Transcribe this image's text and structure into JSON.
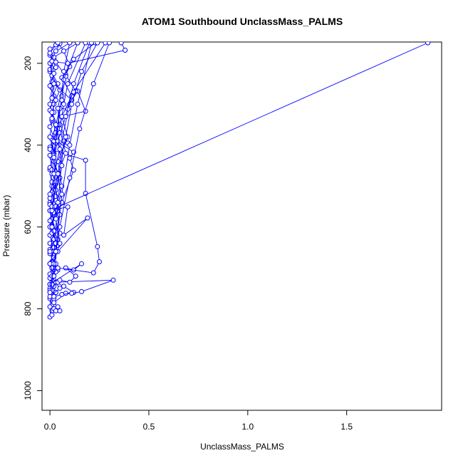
{
  "chart_data": {
    "type": "line",
    "title": "ATOM1 Southbound UnclassMass_PALMS",
    "xlabel": "UnclassMass_PALMS",
    "ylabel": "Pressure (mbar)",
    "xlim": [
      -0.04,
      1.98
    ],
    "ylim": [
      1048,
      148
    ],
    "y_reversed": true,
    "x_ticks": [
      0.0,
      0.5,
      1.0,
      1.5
    ],
    "x_tick_labels": [
      "0.0",
      "0.5",
      "1.0",
      "1.5"
    ],
    "y_ticks": [
      200,
      400,
      600,
      800,
      1000
    ],
    "y_tick_labels": [
      "200",
      "400",
      "600",
      "800",
      "1000"
    ],
    "marker": "open-circle",
    "grid": false,
    "series_color": "#0000ff",
    "series": [
      {
        "values": [
          [
            0.0,
            820
          ],
          [
            0.01,
            780
          ],
          [
            0.0,
            740
          ],
          [
            0.01,
            700
          ],
          [
            0.02,
            660
          ],
          [
            0.0,
            620
          ],
          [
            0.01,
            580
          ],
          [
            0.0,
            540
          ],
          [
            0.01,
            500
          ],
          [
            0.0,
            460
          ],
          [
            0.02,
            420
          ],
          [
            0.0,
            380
          ],
          [
            0.01,
            340
          ],
          [
            0.0,
            300
          ],
          [
            0.01,
            260
          ],
          [
            0.0,
            220
          ],
          [
            0.02,
            190
          ],
          [
            0.0,
            165
          ],
          [
            0.05,
            150
          ]
        ]
      },
      {
        "values": [
          [
            0.01,
            805
          ],
          [
            0.02,
            770
          ],
          [
            0.01,
            735
          ],
          [
            0.03,
            700
          ],
          [
            0.0,
            665
          ],
          [
            0.02,
            630
          ],
          [
            0.01,
            595
          ],
          [
            0.0,
            560
          ],
          [
            0.03,
            525
          ],
          [
            0.01,
            490
          ],
          [
            0.0,
            455
          ],
          [
            0.02,
            420
          ],
          [
            0.01,
            385
          ],
          [
            0.03,
            350
          ],
          [
            0.0,
            315
          ],
          [
            0.02,
            280
          ],
          [
            0.01,
            245
          ],
          [
            0.03,
            210
          ],
          [
            0.0,
            180
          ],
          [
            0.1,
            150
          ]
        ]
      },
      {
        "values": [
          [
            0.0,
            775
          ],
          [
            0.03,
            760
          ],
          [
            0.02,
            745
          ],
          [
            0.0,
            725
          ],
          [
            0.04,
            705
          ],
          [
            0.01,
            685
          ],
          [
            0.02,
            660
          ],
          [
            0.0,
            640
          ],
          [
            0.03,
            610
          ],
          [
            0.01,
            580
          ],
          [
            0.0,
            545
          ],
          [
            0.02,
            510
          ],
          [
            0.04,
            470
          ],
          [
            0.01,
            430
          ],
          [
            0.03,
            395
          ],
          [
            0.0,
            355
          ],
          [
            0.02,
            320
          ],
          [
            0.01,
            285
          ],
          [
            0.04,
            250
          ],
          [
            0.0,
            215
          ],
          [
            0.02,
            185
          ],
          [
            0.14,
            150
          ]
        ]
      },
      {
        "values": [
          [
            0.02,
            800
          ],
          [
            0.01,
            790
          ],
          [
            0.0,
            770
          ],
          [
            0.05,
            750
          ],
          [
            0.02,
            730
          ],
          [
            0.03,
            710
          ],
          [
            0.0,
            690
          ],
          [
            0.02,
            670
          ],
          [
            0.04,
            645
          ],
          [
            0.01,
            615
          ],
          [
            0.0,
            585
          ],
          [
            0.03,
            550
          ],
          [
            0.01,
            515
          ],
          [
            0.05,
            480
          ],
          [
            0.02,
            440
          ],
          [
            0.0,
            405
          ],
          [
            0.03,
            370
          ],
          [
            0.01,
            335
          ],
          [
            0.02,
            300
          ],
          [
            0.05,
            265
          ],
          [
            0.01,
            230
          ],
          [
            0.0,
            200
          ],
          [
            0.03,
            170
          ],
          [
            0.05,
            152
          ]
        ]
      },
      {
        "values": [
          [
            0.01,
            815
          ],
          [
            0.0,
            795
          ],
          [
            0.02,
            775
          ],
          [
            0.01,
            755
          ],
          [
            0.03,
            735
          ],
          [
            0.0,
            715
          ],
          [
            0.01,
            695
          ],
          [
            0.02,
            675
          ],
          [
            0.0,
            655
          ],
          [
            0.04,
            630
          ],
          [
            0.01,
            600
          ],
          [
            0.02,
            565
          ],
          [
            0.0,
            530
          ],
          [
            0.03,
            495
          ],
          [
            0.01,
            460
          ],
          [
            0.0,
            425
          ],
          [
            0.02,
            390
          ],
          [
            0.04,
            355
          ],
          [
            0.01,
            320
          ],
          [
            0.03,
            290
          ],
          [
            0.0,
            255
          ],
          [
            0.02,
            225
          ],
          [
            0.01,
            195
          ],
          [
            0.0,
            175
          ],
          [
            0.03,
            155
          ]
        ]
      },
      {
        "values": [
          [
            0.03,
            805
          ],
          [
            0.05,
            805
          ],
          [
            0.04,
            795
          ],
          [
            0.02,
            785
          ],
          [
            0.08,
            762
          ],
          [
            0.12,
            760
          ],
          [
            0.07,
            745
          ],
          [
            0.03,
            735
          ]
        ]
      },
      {
        "values": [
          [
            0.02,
            770
          ],
          [
            0.06,
            765
          ],
          [
            0.11,
            762
          ],
          [
            0.16,
            758
          ],
          [
            0.32,
            730
          ],
          [
            0.04,
            735
          ],
          [
            0.0,
            750
          ]
        ]
      },
      {
        "values": [
          [
            0.05,
            730
          ],
          [
            0.1,
            735
          ],
          [
            0.13,
            720
          ],
          [
            0.08,
            700
          ],
          [
            0.12,
            705
          ],
          [
            0.16,
            690
          ],
          [
            0.0,
            740
          ]
        ]
      },
      {
        "values": [
          [
            0.01,
            720
          ],
          [
            0.04,
            700
          ],
          [
            0.22,
            712
          ],
          [
            0.25,
            685
          ],
          [
            0.24,
            648
          ],
          [
            0.18,
            518
          ],
          [
            0.18,
            437
          ],
          [
            0.0,
            410
          ]
        ]
      },
      {
        "values": [
          [
            0.0,
            690
          ],
          [
            0.04,
            660
          ],
          [
            0.19,
            578
          ],
          [
            0.07,
            620
          ],
          [
            0.09,
            551
          ],
          [
            0.0,
            560
          ]
        ]
      },
      {
        "values": [
          [
            0.01,
            600
          ],
          [
            0.05,
            615
          ],
          [
            0.04,
            560
          ],
          [
            0.06,
            540
          ],
          [
            0.12,
            461
          ],
          [
            0.1,
            432
          ],
          [
            0.12,
            417
          ],
          [
            0.0,
            380
          ]
        ]
      },
      {
        "values": [
          [
            0.02,
            650
          ],
          [
            0.07,
            390
          ],
          [
            0.09,
            395
          ],
          [
            0.05,
            350
          ],
          [
            0.06,
            331
          ],
          [
            0.18,
            317
          ],
          [
            0.14,
            268
          ],
          [
            0.11,
            290
          ],
          [
            0.02,
            250
          ]
        ]
      },
      {
        "values": [
          [
            0.0,
            520
          ],
          [
            0.1,
            300
          ],
          [
            0.13,
            268
          ],
          [
            0.08,
            228
          ],
          [
            0.1,
            208
          ],
          [
            0.07,
            170
          ],
          [
            0.04,
            150
          ]
        ]
      },
      {
        "values": [
          [
            0.01,
            470
          ],
          [
            0.06,
            280
          ],
          [
            0.08,
            232
          ],
          [
            0.03,
            197
          ],
          [
            0.09,
            200
          ],
          [
            0.38,
            168
          ],
          [
            0.36,
            150
          ]
        ]
      },
      {
        "values": [
          [
            0.02,
            425
          ],
          [
            0.05,
            310
          ],
          [
            0.09,
            312
          ],
          [
            0.11,
            280
          ],
          [
            0.06,
            235
          ],
          [
            0.12,
            190
          ],
          [
            0.23,
            150
          ]
        ]
      },
      {
        "values": [
          [
            0.0,
            560
          ],
          [
            1.91,
            150
          ]
        ]
      },
      {
        "values": [
          [
            0.0,
            600
          ],
          [
            0.06,
            540
          ],
          [
            0.04,
            470
          ],
          [
            0.08,
            420
          ],
          [
            0.05,
            360
          ],
          [
            0.07,
            300
          ],
          [
            0.09,
            250
          ],
          [
            0.18,
            150
          ]
        ]
      },
      {
        "values": [
          [
            0.01,
            700
          ],
          [
            0.05,
            640
          ],
          [
            0.03,
            580
          ],
          [
            0.06,
            500
          ],
          [
            0.04,
            440
          ],
          [
            0.09,
            380
          ],
          [
            0.06,
            330
          ],
          [
            0.12,
            270
          ],
          [
            0.28,
            150
          ]
        ]
      },
      {
        "values": [
          [
            0.0,
            660
          ],
          [
            0.02,
            610
          ],
          [
            0.01,
            550
          ],
          [
            0.03,
            490
          ],
          [
            0.02,
            430
          ],
          [
            0.05,
            370
          ],
          [
            0.04,
            310
          ],
          [
            0.07,
            240
          ],
          [
            0.14,
            150
          ]
        ]
      },
      {
        "values": [
          [
            0.01,
            740
          ],
          [
            0.03,
            690
          ],
          [
            0.02,
            630
          ],
          [
            0.05,
            570
          ],
          [
            0.03,
            510
          ],
          [
            0.06,
            450
          ],
          [
            0.04,
            390
          ],
          [
            0.08,
            330
          ],
          [
            0.12,
            250
          ],
          [
            0.2,
            150
          ]
        ]
      },
      {
        "values": [
          [
            0.0,
            755
          ],
          [
            0.02,
            720
          ],
          [
            0.0,
            690
          ],
          [
            0.03,
            640
          ],
          [
            0.01,
            600
          ],
          [
            0.04,
            540
          ],
          [
            0.02,
            470
          ],
          [
            0.05,
            410
          ],
          [
            0.03,
            350
          ],
          [
            0.06,
            290
          ],
          [
            0.07,
            220
          ],
          [
            0.1,
            150
          ]
        ]
      },
      {
        "values": [
          [
            0.02,
            690
          ],
          [
            0.05,
            600
          ],
          [
            0.1,
            480
          ],
          [
            0.15,
            360
          ],
          [
            0.22,
            250
          ],
          [
            0.3,
            150
          ]
        ]
      },
      {
        "values": [
          [
            0.0,
            760
          ],
          [
            0.03,
            660
          ],
          [
            0.06,
            520
          ],
          [
            0.1,
            400
          ],
          [
            0.14,
            300
          ],
          [
            0.21,
            150
          ]
        ]
      },
      {
        "values": [
          [
            0.01,
            560
          ],
          [
            0.04,
            470
          ],
          [
            0.08,
            380
          ],
          [
            0.11,
            300
          ],
          [
            0.16,
            220
          ],
          [
            0.24,
            150
          ]
        ]
      }
    ]
  }
}
